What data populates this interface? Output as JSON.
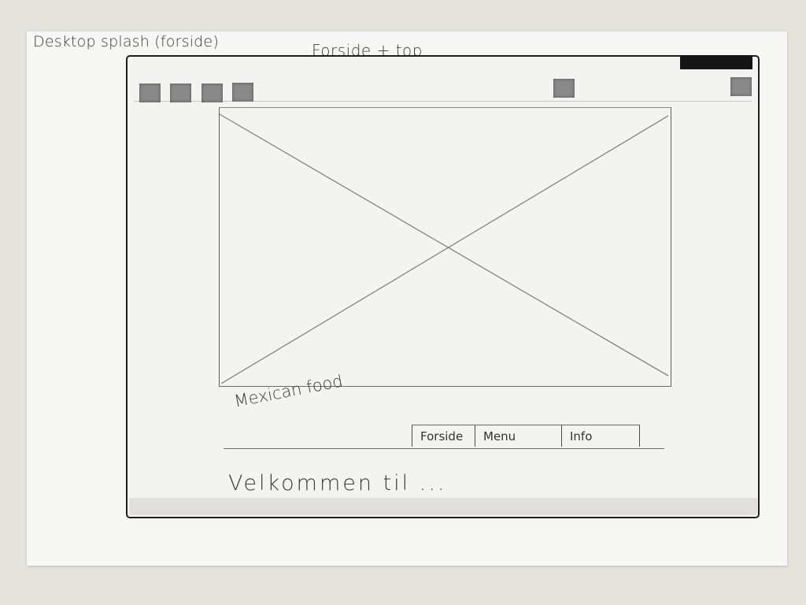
{
  "sheet": {
    "title": "Desktop splash (forside)",
    "sketch_title": "Forside + top"
  },
  "icons": {
    "toolbar_left": [
      "placeholder-square-icon",
      "placeholder-square-icon",
      "placeholder-square-icon",
      "placeholder-square-icon"
    ],
    "toolbar_right": [
      "placeholder-square-icon",
      "placeholder-square-icon"
    ],
    "hero": "image-placeholder-icon"
  },
  "hero": {
    "brand": "Mexican food"
  },
  "nav": {
    "items": [
      {
        "label": "Forside"
      },
      {
        "label": "Menu"
      },
      {
        "label": "Info"
      }
    ]
  },
  "main": {
    "welcome": "Velkommen til ..."
  }
}
